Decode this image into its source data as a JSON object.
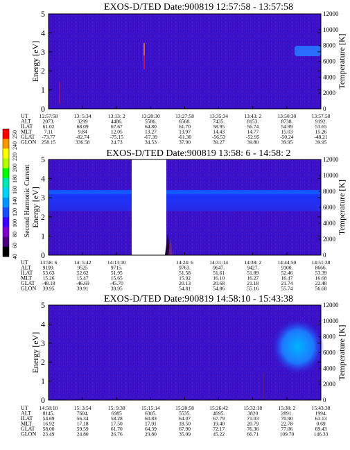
{
  "chart_data": [
    {
      "type": "heatmap",
      "title": "EXOS-D/TED    Date:900819    12:57:58 - 13:57:58",
      "ylabel": "Energy [eV]",
      "ylabel2": "Temperature [K]",
      "ylim": [
        0,
        5
      ],
      "ylim2": [
        0,
        12000
      ],
      "yticks": [
        "0",
        "1",
        "2",
        "3",
        "4",
        "5"
      ],
      "yticks2": [
        "0",
        "2000",
        "4000",
        "6000",
        "8000",
        "10000",
        "12000"
      ],
      "row_labels": [
        "UT",
        "ALT",
        "ILAT",
        "MLT",
        "GLAT",
        "GLON"
      ],
      "columns": [
        [
          "12:57:58",
          "2073.",
          "61.02",
          "7.11",
          "-73.77",
          "258.15"
        ],
        [
          "13: 5:34",
          "3299",
          "68.09",
          "9.84",
          "-82.74",
          "336.58"
        ],
        [
          "13:13: 2",
          "4486.",
          "67.67",
          "12.05",
          "-75.15",
          "24.73"
        ],
        [
          "13:20:30",
          "5586.",
          "64.80",
          "13.27",
          "-67.39",
          "34.53"
        ],
        [
          "13:27:58",
          "6568.",
          "61.70",
          "13.97",
          "-61.30",
          "37.90"
        ],
        [
          "13:35:34",
          "7435.",
          "58.95",
          "14.43",
          "-56.53",
          "39.27"
        ],
        [
          "13:43: 2",
          "8153.",
          "56.74",
          "14.77",
          "-52.95",
          "39.80"
        ],
        [
          "13:50:30",
          "8738.",
          "54.99",
          "15.03",
          "-50.24",
          "39.95"
        ],
        [
          "13:57:58",
          "9192.",
          "53.65",
          "15.26",
          "-48.21",
          "39.95"
        ]
      ]
    },
    {
      "type": "heatmap",
      "title": "EXOS-D/TED    Date:900819    13:58: 6 - 14:58: 2",
      "ylabel": "Energy [eV]",
      "ylabel2": "Temperature [K]",
      "ylim": [
        0,
        5
      ],
      "ylim2": [
        0,
        12000
      ],
      "yticks": [
        "0",
        "1",
        "2",
        "3",
        "4",
        "5"
      ],
      "yticks2": [
        "0",
        "2000",
        "4000",
        "6000",
        "8000",
        "10000",
        "12000"
      ],
      "row_labels": [
        "UT",
        "ALT",
        "ILAT",
        "MLT",
        "GLAT",
        "GLON"
      ],
      "columns": [
        [
          "13:58: 6",
          "9199.",
          "53.63",
          "15.26",
          "-48.18",
          "39.95"
        ],
        [
          "14: 5:42",
          "9525",
          "52.62",
          "15.47",
          "-46.69",
          "39.91"
        ],
        [
          "14:13:10",
          "9715.",
          "51.95",
          "15.65",
          "-45.70",
          "39.95"
        ],
        [
          "",
          "",
          "",
          "",
          "",
          ""
        ],
        [
          "14:24: 6",
          "9763.",
          "51.58",
          "15.92",
          "20.13",
          "54.81"
        ],
        [
          "14:31:14",
          "9647.",
          "51.61",
          "16.10",
          "20.68",
          "54.86"
        ],
        [
          "14:38: 2",
          "9427.",
          "51.89",
          "16.27",
          "21.18",
          "55.16"
        ],
        [
          "14:44:50",
          "9100.",
          "52.46",
          "16.47",
          "21.74",
          "55.74"
        ],
        [
          "14:51:38",
          "8666.",
          "53.39",
          "16.68",
          "22.48",
          "56.68"
        ]
      ],
      "data_gap": [
        14.25,
        14.38
      ]
    },
    {
      "type": "heatmap",
      "title": "EXOS-D/TED    Date:900819    14:58:10 - 15:43:38",
      "ylabel": "Energy [eV]",
      "ylabel2": "Temperature [K]",
      "ylim": [
        0,
        5
      ],
      "ylim2": [
        0,
        12000
      ],
      "yticks": [
        "0",
        "1",
        "2",
        "3",
        "4",
        "5"
      ],
      "yticks2": [
        "0",
        "2000",
        "4000",
        "6000",
        "8000",
        "10000",
        "12000"
      ],
      "row_labels": [
        "UT",
        "ALT",
        "ILAT",
        "MLT",
        "GLAT",
        "GLON"
      ],
      "columns": [
        [
          "14:58:10",
          "8145.",
          "54.69",
          "16.92",
          "58.00",
          "23.49"
        ],
        [
          "15: 3:54",
          "7604.",
          "56.34",
          "17.18",
          "59.59",
          "24.80"
        ],
        [
          "15: 9:38",
          "6985",
          "58.28",
          "17.50",
          "61.70",
          "26.76"
        ],
        [
          "15:15:14",
          "6305.",
          "60.83",
          "17.91",
          "64.39",
          "29.80"
        ],
        [
          "15:20:58",
          "5535.",
          "64.07",
          "18.50",
          "67.90",
          "35.09"
        ],
        [
          "15:26:42",
          "4695.",
          "67.79",
          "19.40",
          "72.17",
          "45.22"
        ],
        [
          "15:32:18",
          "3820",
          "71.03",
          "20.79",
          "76.36",
          "66.71"
        ],
        [
          "15:38: 2",
          "2891.",
          "70.90",
          "22.78",
          "77.06",
          "109.70"
        ],
        [
          "15:43:38",
          "1994.",
          "63.13",
          "0.69",
          "69.43",
          "146.33"
        ]
      ]
    }
  ],
  "colorbar": {
    "label": "Second Harmonic Current",
    "ticks": [
      "40",
      "60",
      "80",
      "100",
      "120",
      "140",
      "160",
      "180",
      "200",
      "220",
      "240",
      "250"
    ],
    "colors": [
      "#000000",
      "#4b0082",
      "#7f00c8",
      "#3c00ff",
      "#1a4dff",
      "#0096ff",
      "#00d2ff",
      "#00e6b4",
      "#00ff00",
      "#b4ff00",
      "#ffff00",
      "#ff9600",
      "#ff0000"
    ]
  }
}
